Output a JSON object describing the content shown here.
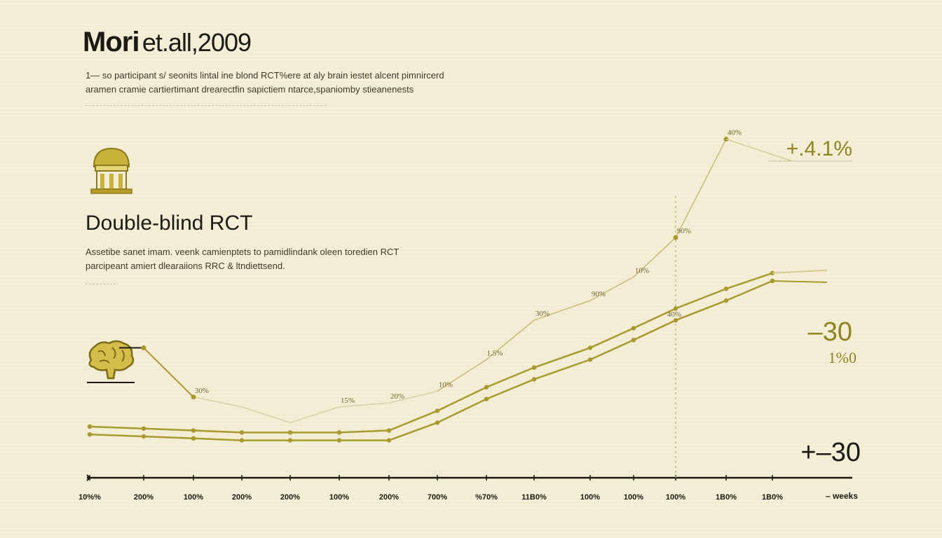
{
  "header": {
    "title_main": "Mori",
    "title_rest": "et.all,2009",
    "description_lines": [
      "1— so participant s/ seonits lintal ine blond RCT%ere at aly brain iestet alcent pimnircerd",
      "aramen cramie cartiertimant drearectfin sapictiem ntarce,spaniomby stieanenests"
    ]
  },
  "study": {
    "subtitle": "Double-blind RCT",
    "description_lines": [
      "Assetibe sanet imam. veenk camienptets to pamidlindank oleen toredien RCT",
      "parcipeant amiert dlearaiions RRC & ltndiettsend."
    ]
  },
  "icons": {
    "building": "institution-icon",
    "brain": "brain-icon"
  },
  "colors": {
    "background": "#f4eed6",
    "primary_line": "#a89a2e",
    "faint_line": "#d9cfa8",
    "axis": "#1b1a14",
    "accent_text": "#8f8422"
  },
  "chart_data": {
    "type": "line",
    "title": "Mori et.all,2009",
    "xlabel": "– weeks",
    "ylabel": "",
    "categories": [
      "10%%",
      "200%",
      "100%",
      "200%",
      "200%",
      "100%",
      "200%",
      "700%",
      "%70%",
      "11B0%",
      "100%",
      "100%",
      "100%",
      "1B0%",
      "1B0%"
    ],
    "ylim": [
      0,
      100
    ],
    "series": [
      {
        "name": "upper",
        "values": [
          13,
          12.5,
          12,
          11.5,
          11.5,
          11.5,
          12,
          17,
          23,
          28,
          33,
          38,
          43,
          48,
          52
        ]
      },
      {
        "name": "lower",
        "values": [
          11,
          10.5,
          10,
          9.5,
          9.5,
          9.5,
          9.5,
          14,
          20,
          25,
          30,
          35,
          40,
          45,
          50
        ]
      }
    ],
    "trend_series": {
      "name": "response",
      "x_index": [
        1,
        2,
        3,
        4,
        5,
        6,
        7,
        8,
        9,
        10,
        11,
        12,
        13
      ],
      "values": [
        33,
        20.5,
        18,
        14,
        18,
        19,
        22,
        30,
        40,
        45,
        51,
        61,
        86
      ]
    },
    "point_labels": [
      {
        "text": "30%",
        "at": 2,
        "series": "response"
      },
      {
        "text": "15%",
        "at": 5,
        "series": "response"
      },
      {
        "text": "20%",
        "at": 6,
        "series": "response"
      },
      {
        "text": "10%",
        "at": 7,
        "series": "response"
      },
      {
        "text": "1.5%",
        "at": 8,
        "series": "response"
      },
      {
        "text": "30%",
        "at": 9,
        "series": "response"
      },
      {
        "text": "90%",
        "at": 10,
        "series": "response"
      },
      {
        "text": "10%",
        "at": 11,
        "series": "response"
      },
      {
        "text": "90%",
        "at": 12,
        "series": "response"
      },
      {
        "text": "40%",
        "at": 13,
        "series": "response"
      }
    ],
    "annotations": [
      {
        "text": "+.4.1%",
        "role": "peak-value"
      },
      {
        "text": "–30",
        "role": "upper-end-value"
      },
      {
        "text": "1%0",
        "role": "lower-end-value"
      },
      {
        "text": "+–30",
        "role": "baseline-value"
      },
      {
        "text": "40%",
        "role": "marker-label"
      }
    ],
    "marker_x_index": 12,
    "grid": false,
    "legend": "none"
  }
}
